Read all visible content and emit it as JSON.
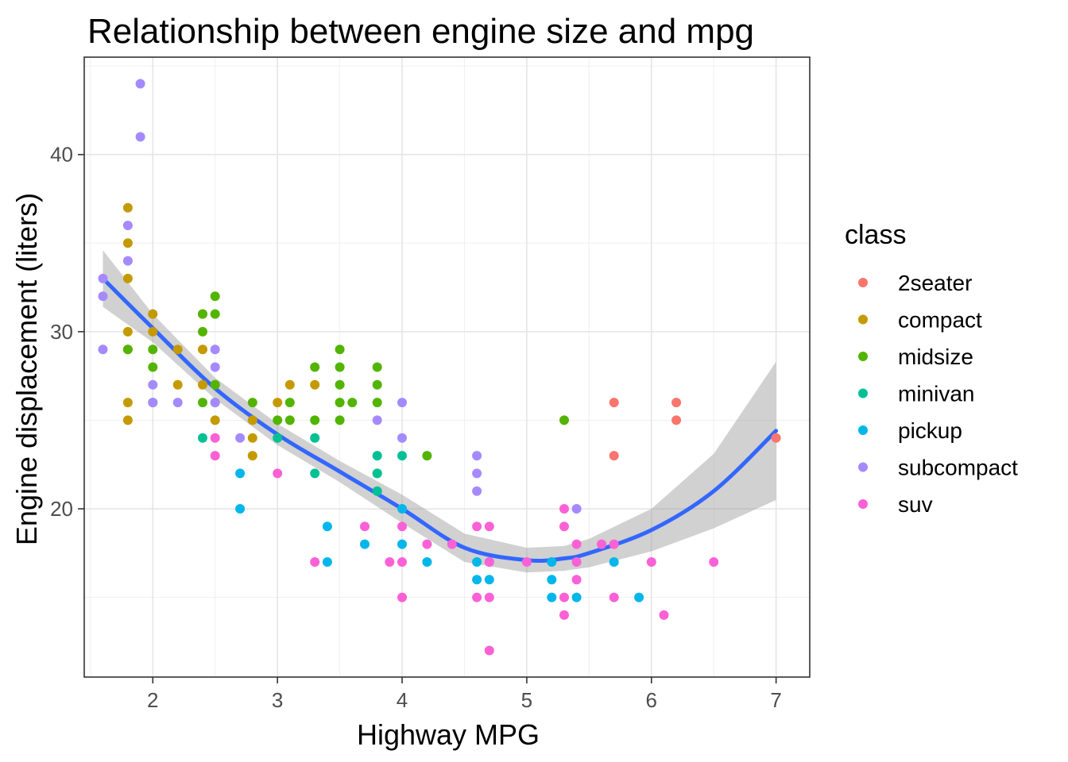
{
  "chart_data": {
    "type": "scatter",
    "title": "Relationship between engine size and mpg",
    "xlabel": "Highway MPG",
    "ylabel": "Engine displacement (liters)",
    "xlim": [
      1.45,
      7.27
    ],
    "ylim": [
      10.5,
      45.5
    ],
    "xticks": [
      2,
      3,
      4,
      5,
      6,
      7
    ],
    "yticks": [
      20,
      30,
      40
    ],
    "grid": true,
    "legend": {
      "title": "class",
      "placement": "right",
      "entries": [
        {
          "name": "2seater",
          "color": "#F8766D"
        },
        {
          "name": "compact",
          "color": "#C49A00"
        },
        {
          "name": "midsize",
          "color": "#53B400"
        },
        {
          "name": "minivan",
          "color": "#00C094"
        },
        {
          "name": "pickup",
          "color": "#00B6EB"
        },
        {
          "name": "subcompact",
          "color": "#A58AFF"
        },
        {
          "name": "suv",
          "color": "#FB61D7"
        }
      ]
    },
    "series": [
      {
        "name": "2seater",
        "points": [
          [
            5.7,
            26
          ],
          [
            5.7,
            23
          ],
          [
            6.2,
            26
          ],
          [
            6.2,
            25
          ],
          [
            7.0,
            24
          ]
        ]
      },
      {
        "name": "compact",
        "points": [
          [
            1.8,
            37
          ],
          [
            1.8,
            35
          ],
          [
            1.8,
            33
          ],
          [
            1.8,
            30
          ],
          [
            1.8,
            29
          ],
          [
            1.8,
            26
          ],
          [
            1.8,
            25
          ],
          [
            2.0,
            31
          ],
          [
            2.0,
            30
          ],
          [
            2.2,
            29
          ],
          [
            2.2,
            27
          ],
          [
            2.4,
            31
          ],
          [
            2.4,
            29
          ],
          [
            2.4,
            27
          ],
          [
            2.5,
            27
          ],
          [
            2.5,
            25
          ],
          [
            2.8,
            25
          ],
          [
            2.8,
            24
          ],
          [
            2.8,
            23
          ],
          [
            3.0,
            26
          ],
          [
            3.1,
            27
          ],
          [
            3.3,
            27
          ]
        ]
      },
      {
        "name": "midsize",
        "points": [
          [
            1.8,
            29
          ],
          [
            2.0,
            29
          ],
          [
            2.0,
            28
          ],
          [
            2.0,
            26
          ],
          [
            2.4,
            31
          ],
          [
            2.4,
            30
          ],
          [
            2.4,
            26
          ],
          [
            2.5,
            32
          ],
          [
            2.5,
            31
          ],
          [
            2.5,
            27
          ],
          [
            2.5,
            26
          ],
          [
            2.8,
            26
          ],
          [
            3.0,
            25
          ],
          [
            3.1,
            26
          ],
          [
            3.1,
            25
          ],
          [
            3.3,
            28
          ],
          [
            3.3,
            25
          ],
          [
            3.5,
            29
          ],
          [
            3.5,
            28
          ],
          [
            3.5,
            27
          ],
          [
            3.5,
            26
          ],
          [
            3.5,
            25
          ],
          [
            3.6,
            26
          ],
          [
            3.8,
            28
          ],
          [
            3.8,
            27
          ],
          [
            3.8,
            26
          ],
          [
            3.8,
            22
          ],
          [
            4.2,
            23
          ],
          [
            5.3,
            25
          ]
        ]
      },
      {
        "name": "minivan",
        "points": [
          [
            2.4,
            24
          ],
          [
            3.0,
            24
          ],
          [
            3.3,
            24
          ],
          [
            3.3,
            22
          ],
          [
            3.8,
            23
          ],
          [
            3.8,
            22
          ],
          [
            3.8,
            21
          ],
          [
            4.0,
            23
          ]
        ]
      },
      {
        "name": "pickup",
        "points": [
          [
            2.7,
            22
          ],
          [
            2.7,
            20
          ],
          [
            3.4,
            19
          ],
          [
            3.4,
            17
          ],
          [
            3.7,
            18
          ],
          [
            4.0,
            20
          ],
          [
            4.0,
            18
          ],
          [
            4.2,
            17
          ],
          [
            4.6,
            17
          ],
          [
            4.6,
            16
          ],
          [
            4.7,
            17
          ],
          [
            4.7,
            16
          ],
          [
            5.2,
            17
          ],
          [
            5.2,
            16
          ],
          [
            5.2,
            15
          ],
          [
            5.4,
            15
          ],
          [
            5.7,
            17
          ],
          [
            5.9,
            15
          ]
        ]
      },
      {
        "name": "subcompact",
        "points": [
          [
            1.6,
            33
          ],
          [
            1.6,
            32
          ],
          [
            1.6,
            29
          ],
          [
            1.8,
            36
          ],
          [
            1.8,
            34
          ],
          [
            1.9,
            44
          ],
          [
            1.9,
            41
          ],
          [
            2.0,
            27
          ],
          [
            2.0,
            26
          ],
          [
            2.2,
            26
          ],
          [
            2.5,
            29
          ],
          [
            2.5,
            28
          ],
          [
            2.5,
            26
          ],
          [
            2.7,
            24
          ],
          [
            3.8,
            25
          ],
          [
            4.0,
            26
          ],
          [
            4.0,
            24
          ],
          [
            4.6,
            23
          ],
          [
            4.6,
            22
          ],
          [
            4.6,
            21
          ],
          [
            5.4,
            20
          ]
        ]
      },
      {
        "name": "suv",
        "points": [
          [
            2.5,
            24
          ],
          [
            2.5,
            23
          ],
          [
            3.0,
            22
          ],
          [
            3.3,
            17
          ],
          [
            3.7,
            19
          ],
          [
            3.9,
            17
          ],
          [
            4.0,
            19
          ],
          [
            4.0,
            17
          ],
          [
            4.0,
            15
          ],
          [
            4.2,
            18
          ],
          [
            4.4,
            18
          ],
          [
            4.6,
            19
          ],
          [
            4.6,
            15
          ],
          [
            4.7,
            19
          ],
          [
            4.7,
            17
          ],
          [
            4.7,
            15
          ],
          [
            4.7,
            12
          ],
          [
            5.0,
            17
          ],
          [
            5.3,
            20
          ],
          [
            5.3,
            19
          ],
          [
            5.3,
            15
          ],
          [
            5.3,
            14
          ],
          [
            5.4,
            18
          ],
          [
            5.4,
            17
          ],
          [
            5.4,
            16
          ],
          [
            5.6,
            18
          ],
          [
            5.7,
            18
          ],
          [
            5.7,
            15
          ],
          [
            6.0,
            17
          ],
          [
            6.1,
            14
          ],
          [
            6.5,
            17
          ]
        ]
      }
    ],
    "smooth": {
      "method": "loess",
      "color": "#3366FF",
      "band_color": "#999999",
      "x": [
        1.6,
        2.0,
        2.5,
        3.0,
        3.5,
        4.0,
        4.5,
        5.0,
        5.3,
        5.5,
        6.0,
        6.5,
        7.0
      ],
      "y": [
        33.0,
        30.2,
        26.8,
        24.2,
        22.1,
        20.0,
        17.8,
        17.1,
        17.2,
        17.5,
        18.8,
        21.0,
        24.4
      ],
      "lower": [
        31.4,
        29.4,
        26.2,
        23.6,
        21.5,
        19.2,
        17.0,
        16.4,
        16.5,
        16.7,
        17.6,
        18.9,
        20.5
      ],
      "upper": [
        34.6,
        31.0,
        27.4,
        24.8,
        22.7,
        20.8,
        18.6,
        17.8,
        17.9,
        18.3,
        20.0,
        23.1,
        28.3
      ]
    }
  }
}
